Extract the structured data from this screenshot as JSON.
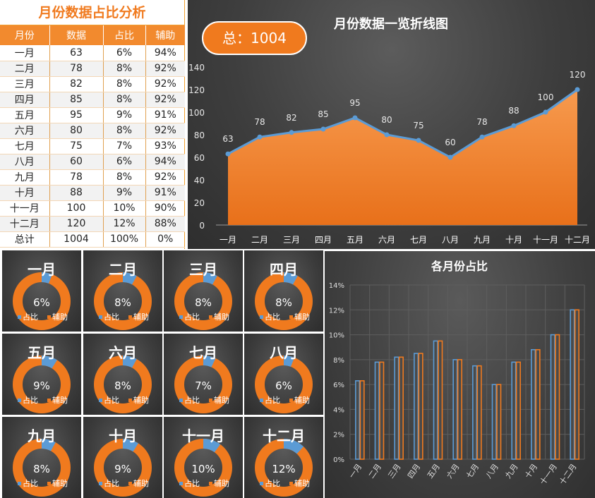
{
  "table": {
    "title": "月份数据占比分析",
    "headers": [
      "月份",
      "数据",
      "占比",
      "辅助"
    ],
    "rows": [
      [
        "一月",
        "63",
        "6%",
        "94%"
      ],
      [
        "二月",
        "78",
        "8%",
        "92%"
      ],
      [
        "三月",
        "82",
        "8%",
        "92%"
      ],
      [
        "四月",
        "85",
        "8%",
        "92%"
      ],
      [
        "五月",
        "95",
        "9%",
        "91%"
      ],
      [
        "六月",
        "80",
        "8%",
        "92%"
      ],
      [
        "七月",
        "75",
        "7%",
        "93%"
      ],
      [
        "八月",
        "60",
        "6%",
        "94%"
      ],
      [
        "九月",
        "78",
        "8%",
        "92%"
      ],
      [
        "十月",
        "88",
        "9%",
        "91%"
      ],
      [
        "十一月",
        "100",
        "10%",
        "90%"
      ],
      [
        "十二月",
        "120",
        "12%",
        "88%"
      ],
      [
        "总计",
        "1004",
        "100%",
        "0%"
      ]
    ]
  },
  "total_label": "总：1004",
  "colors": {
    "orange": "#f07a1e",
    "blue": "#5b9bd5",
    "dark_bg": "#3c3c3c"
  },
  "chart_data": [
    {
      "type": "area",
      "title": "月份数据一览折线图",
      "categories": [
        "一月",
        "二月",
        "三月",
        "四月",
        "五月",
        "六月",
        "七月",
        "八月",
        "九月",
        "十月",
        "十一月",
        "十二月"
      ],
      "values": [
        63,
        78,
        82,
        85,
        95,
        80,
        75,
        60,
        78,
        88,
        100,
        120
      ],
      "ylim": [
        0,
        140
      ],
      "yticks": [
        "0",
        "20",
        "40",
        "60",
        "80",
        "100",
        "120",
        "140"
      ],
      "grid": false
    },
    {
      "type": "pie",
      "variant": "donut",
      "charts": [
        {
          "title": "一月",
          "label": "6%",
          "share": 6
        },
        {
          "title": "二月",
          "label": "8%",
          "share": 8
        },
        {
          "title": "三月",
          "label": "8%",
          "share": 8
        },
        {
          "title": "四月",
          "label": "8%",
          "share": 8
        },
        {
          "title": "五月",
          "label": "9%",
          "share": 9
        },
        {
          "title": "六月",
          "label": "8%",
          "share": 8
        },
        {
          "title": "七月",
          "label": "7%",
          "share": 7
        },
        {
          "title": "八月",
          "label": "6%",
          "share": 6
        },
        {
          "title": "九月",
          "label": "8%",
          "share": 8
        },
        {
          "title": "十月",
          "label": "9%",
          "share": 9
        },
        {
          "title": "十一月",
          "label": "10%",
          "share": 10
        },
        {
          "title": "十二月",
          "label": "12%",
          "share": 12
        }
      ],
      "legend": [
        "占比",
        "辅助"
      ]
    },
    {
      "type": "bar",
      "title": "各月份占比",
      "categories": [
        "一月",
        "二月",
        "三月",
        "四月",
        "五月",
        "六月",
        "七月",
        "八月",
        "九月",
        "十月",
        "十一月",
        "十二月"
      ],
      "series": [
        {
          "values": [
            6.3,
            7.8,
            8.2,
            8.5,
            9.5,
            8.0,
            7.5,
            6.0,
            7.8,
            8.8,
            10.0,
            12.0
          ]
        },
        {
          "values": [
            6.3,
            7.8,
            8.2,
            8.5,
            9.5,
            8.0,
            7.5,
            6.0,
            7.8,
            8.8,
            10.0,
            12.0
          ]
        }
      ],
      "ylim": [
        0,
        14
      ],
      "yticks": [
        "0%",
        "2%",
        "4%",
        "6%",
        "8%",
        "10%",
        "12%",
        "14%"
      ],
      "grid": true
    }
  ]
}
